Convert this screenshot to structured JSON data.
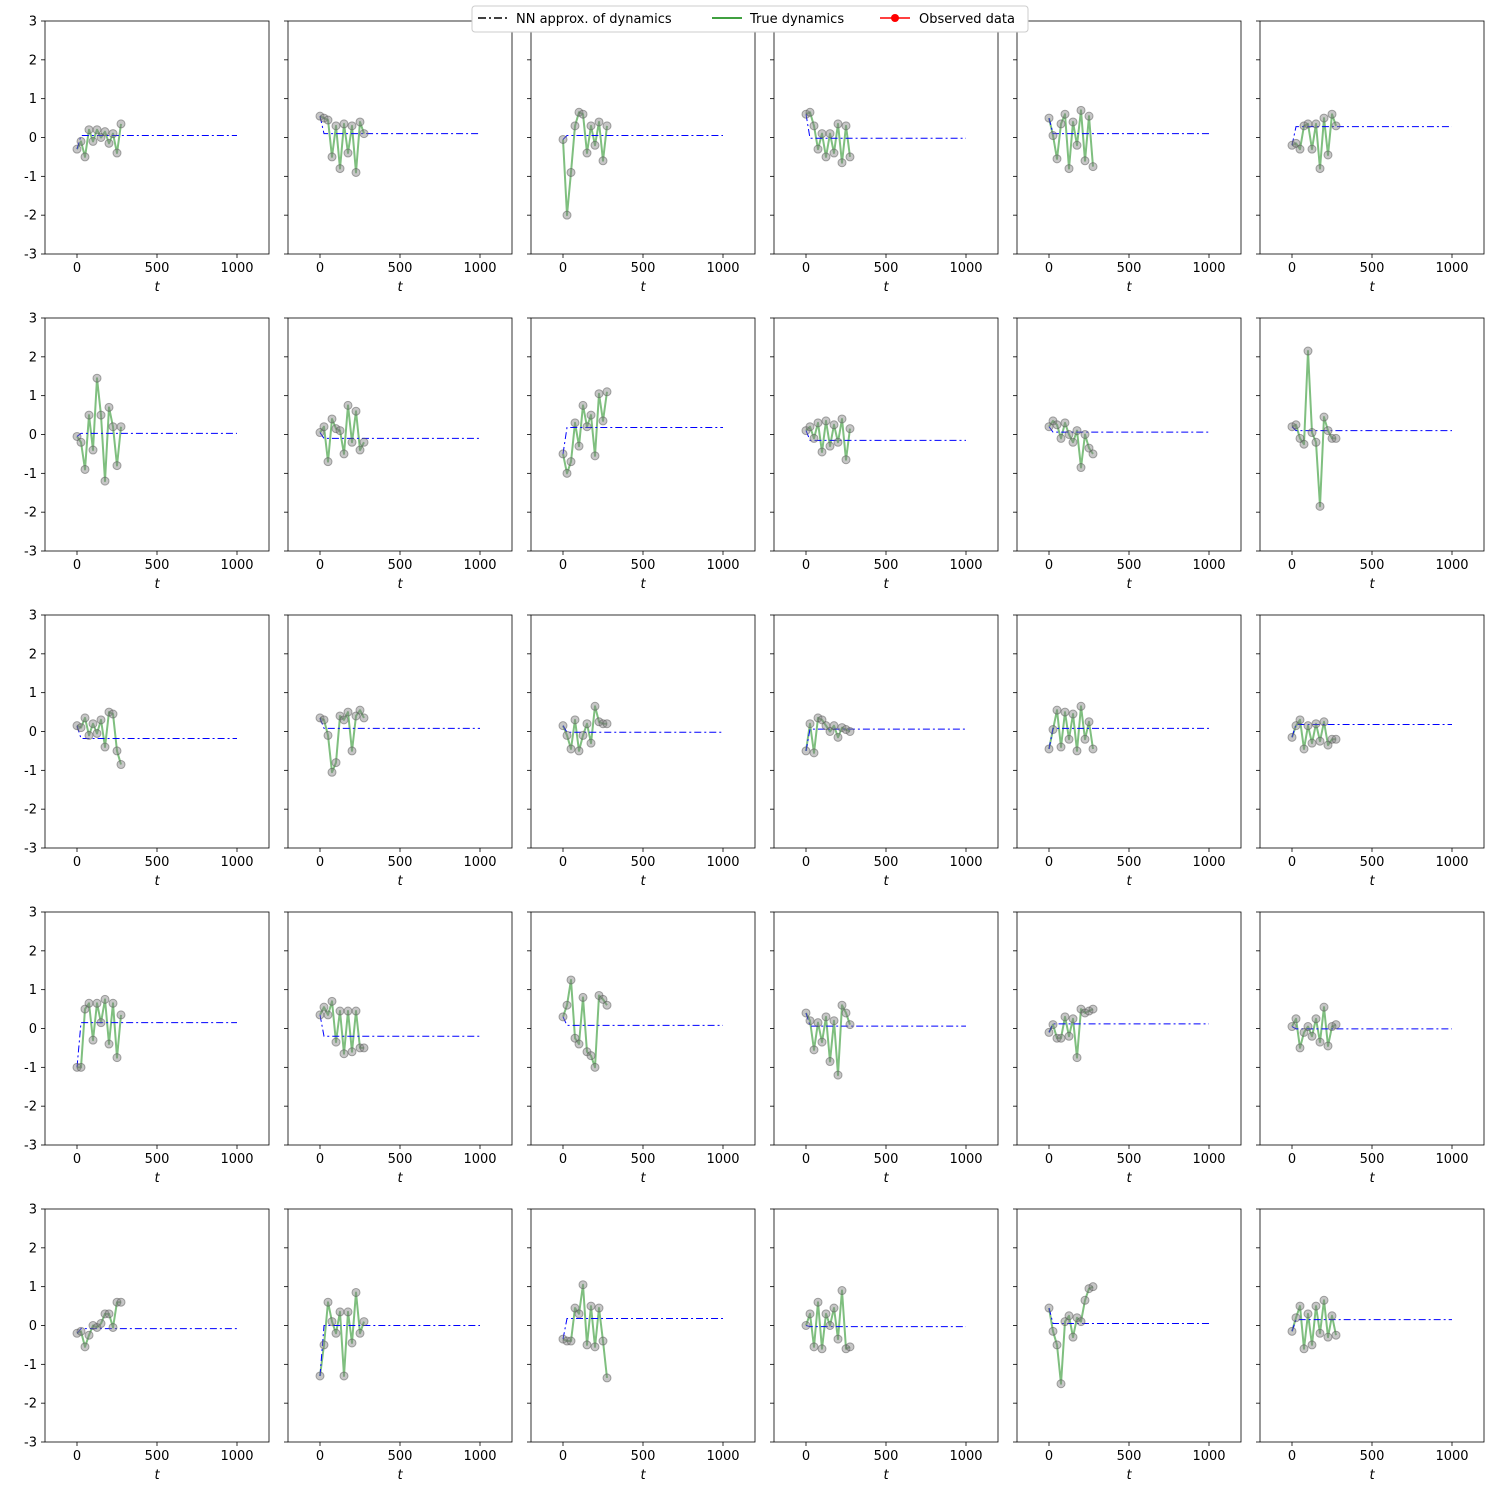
{
  "legend": {
    "items": [
      {
        "label": "NN approx. of dynamics",
        "color": "#000000",
        "style": "dashdot"
      },
      {
        "label": "True dynamics",
        "color": "#008000",
        "style": "solid"
      },
      {
        "label": "Observed data",
        "color": "#ff0000",
        "style": "line-marker"
      }
    ],
    "placement": "top-center"
  },
  "colors": {
    "nn_line": "#0000ff",
    "true_line": "#008000",
    "observed_marker": "#808080"
  },
  "chart_data": {
    "type": "line",
    "layout": "grid 5x6 small multiples",
    "xlim": [
      -200,
      1200
    ],
    "ylim": [
      -3,
      3
    ],
    "xticks": [
      0,
      500,
      1000
    ],
    "yticks": [
      -3,
      -2,
      -1,
      0,
      1,
      2,
      3
    ],
    "xlabel": "t",
    "ylabel": "",
    "grid": false,
    "observed_t": [
      0,
      25,
      50,
      75,
      100,
      125,
      150,
      175,
      200,
      225,
      250,
      275
    ],
    "nn_t": [
      0,
      25,
      1000
    ],
    "panels": [
      {
        "observed": [
          -0.3,
          -0.1,
          -0.5,
          0.2,
          -0.1,
          0.2,
          0.0,
          0.15,
          -0.15,
          0.1,
          -0.4,
          0.35
        ],
        "nn": [
          -0.3,
          0.05,
          0.05
        ]
      },
      {
        "observed": [
          0.55,
          0.5,
          0.45,
          -0.5,
          0.3,
          -0.8,
          0.35,
          -0.4,
          0.3,
          -0.9,
          0.4,
          0.1
        ],
        "nn": [
          0.55,
          0.1,
          0.1
        ]
      },
      {
        "observed": [
          -0.05,
          -2.0,
          -0.9,
          0.3,
          0.65,
          0.6,
          -0.4,
          0.3,
          -0.2,
          0.4,
          -0.6,
          0.3
        ],
        "nn": [
          -0.05,
          0.05,
          0.05
        ]
      },
      {
        "observed": [
          0.6,
          0.65,
          0.3,
          -0.3,
          0.1,
          -0.5,
          0.1,
          -0.4,
          0.35,
          -0.65,
          0.3,
          -0.5
        ],
        "nn": [
          0.6,
          -0.02,
          -0.02
        ]
      },
      {
        "observed": [
          0.5,
          0.05,
          -0.55,
          0.35,
          0.6,
          -0.8,
          0.4,
          -0.2,
          0.7,
          -0.6,
          0.55,
          -0.75
        ],
        "nn": [
          0.5,
          0.1,
          0.1
        ]
      },
      {
        "observed": [
          -0.2,
          -0.15,
          -0.3,
          0.3,
          0.35,
          -0.3,
          0.35,
          -0.8,
          0.5,
          -0.45,
          0.6,
          0.3
        ],
        "nn": [
          -0.2,
          0.28,
          0.28
        ]
      },
      {
        "observed": [
          -0.05,
          -0.2,
          -0.9,
          0.5,
          -0.4,
          1.45,
          0.5,
          -1.2,
          0.7,
          0.2,
          -0.8,
          0.2
        ],
        "nn": [
          -0.05,
          0.03,
          0.03
        ]
      },
      {
        "observed": [
          0.05,
          0.2,
          -0.7,
          0.4,
          0.15,
          0.1,
          -0.5,
          0.75,
          -0.2,
          0.6,
          -0.4,
          -0.2
        ],
        "nn": [
          0.05,
          -0.1,
          -0.1
        ]
      },
      {
        "observed": [
          -0.5,
          -1.0,
          -0.7,
          0.3,
          -0.3,
          0.75,
          0.2,
          0.5,
          -0.55,
          1.05,
          0.35,
          1.1
        ],
        "nn": [
          -0.5,
          0.18,
          0.18
        ]
      },
      {
        "observed": [
          0.1,
          0.2,
          -0.1,
          0.3,
          -0.45,
          0.35,
          -0.3,
          0.25,
          -0.2,
          0.4,
          -0.65,
          0.15
        ],
        "nn": [
          0.1,
          -0.15,
          -0.15
        ]
      },
      {
        "observed": [
          0.2,
          0.35,
          0.25,
          -0.1,
          0.3,
          0.0,
          -0.2,
          0.1,
          -0.85,
          0.0,
          -0.35,
          -0.5
        ],
        "nn": [
          0.2,
          0.06,
          0.06
        ]
      },
      {
        "observed": [
          0.2,
          0.25,
          -0.1,
          -0.25,
          2.15,
          0.05,
          -0.2,
          -1.85,
          0.45,
          0.1,
          -0.1,
          -0.1
        ],
        "nn": [
          0.2,
          0.1,
          0.1
        ]
      },
      {
        "observed": [
          0.15,
          0.1,
          0.35,
          -0.1,
          0.2,
          -0.05,
          0.3,
          -0.4,
          0.5,
          0.45,
          -0.5,
          -0.85
        ],
        "nn": [
          0.15,
          -0.18,
          -0.18
        ]
      },
      {
        "observed": [
          0.35,
          0.3,
          -0.1,
          -1.05,
          -0.8,
          0.4,
          0.3,
          0.5,
          -0.5,
          0.4,
          0.55,
          0.35
        ],
        "nn": [
          0.35,
          0.08,
          0.08
        ]
      },
      {
        "observed": [
          0.15,
          -0.1,
          -0.45,
          0.3,
          -0.5,
          -0.1,
          0.2,
          -0.3,
          0.65,
          0.25,
          0.2,
          0.2
        ],
        "nn": [
          0.15,
          -0.02,
          -0.02
        ]
      },
      {
        "observed": [
          -0.5,
          0.2,
          -0.55,
          0.35,
          0.3,
          0.15,
          0.0,
          0.15,
          -0.15,
          0.1,
          0.05,
          0.0
        ],
        "nn": [
          -0.5,
          0.06,
          0.06
        ]
      },
      {
        "observed": [
          -0.45,
          0.05,
          0.55,
          -0.4,
          0.5,
          -0.2,
          0.45,
          -0.5,
          0.65,
          -0.2,
          0.25,
          -0.45
        ],
        "nn": [
          -0.45,
          0.08,
          0.08
        ]
      },
      {
        "observed": [
          -0.15,
          0.15,
          0.3,
          -0.45,
          0.15,
          -0.3,
          0.2,
          -0.25,
          0.25,
          -0.35,
          -0.2,
          -0.2
        ],
        "nn": [
          -0.15,
          0.18,
          0.18
        ]
      },
      {
        "observed": [
          -1.0,
          -1.0,
          0.5,
          0.65,
          -0.3,
          0.65,
          0.15,
          0.75,
          -0.4,
          0.65,
          -0.75,
          0.35
        ],
        "nn": [
          -1.0,
          0.15,
          0.15
        ]
      },
      {
        "observed": [
          0.35,
          0.55,
          0.35,
          0.7,
          -0.35,
          0.45,
          -0.65,
          0.45,
          -0.6,
          0.45,
          -0.5,
          -0.5
        ],
        "nn": [
          0.35,
          -0.2,
          -0.2
        ]
      },
      {
        "observed": [
          0.3,
          0.6,
          1.25,
          -0.25,
          -0.4,
          0.8,
          -0.6,
          -0.7,
          -1.0,
          0.85,
          0.75,
          0.6
        ],
        "nn": [
          0.3,
          0.08,
          0.08
        ]
      },
      {
        "observed": [
          0.4,
          0.2,
          -0.55,
          0.15,
          -0.35,
          0.3,
          -0.85,
          0.2,
          -1.2,
          0.6,
          0.4,
          0.1
        ],
        "nn": [
          0.4,
          0.06,
          0.06
        ]
      },
      {
        "observed": [
          -0.1,
          0.1,
          -0.25,
          -0.25,
          0.3,
          -0.2,
          0.25,
          -0.75,
          0.5,
          0.4,
          0.45,
          0.5
        ],
        "nn": [
          -0.1,
          0.12,
          0.12
        ]
      },
      {
        "observed": [
          0.05,
          0.25,
          -0.5,
          -0.1,
          0.05,
          -0.2,
          0.25,
          -0.35,
          0.55,
          -0.45,
          0.05,
          0.1
        ],
        "nn": [
          0.05,
          -0.01,
          -0.01
        ]
      },
      {
        "observed": [
          -0.2,
          -0.15,
          -0.55,
          -0.25,
          0.0,
          -0.05,
          0.05,
          0.3,
          0.3,
          -0.05,
          0.6,
          0.6
        ],
        "nn": [
          -0.2,
          -0.08,
          -0.08
        ]
      },
      {
        "observed": [
          -1.3,
          -0.5,
          0.6,
          0.1,
          -0.2,
          0.35,
          -1.3,
          0.35,
          -0.45,
          0.85,
          -0.2,
          0.1
        ],
        "nn": [
          -1.3,
          0.0,
          0.0
        ]
      },
      {
        "observed": [
          -0.35,
          -0.4,
          -0.4,
          0.45,
          0.3,
          1.05,
          -0.5,
          0.5,
          -0.55,
          0.45,
          -0.4,
          -1.35
        ],
        "nn": [
          -0.35,
          0.18,
          0.18
        ]
      },
      {
        "observed": [
          0.0,
          0.3,
          -0.55,
          0.6,
          -0.6,
          0.3,
          0.0,
          0.45,
          -0.35,
          0.9,
          -0.6,
          -0.55
        ],
        "nn": [
          0.0,
          -0.03,
          -0.03
        ]
      },
      {
        "observed": [
          0.45,
          -0.15,
          -0.5,
          -1.5,
          0.1,
          0.25,
          -0.3,
          0.2,
          0.1,
          0.65,
          0.95,
          1.0
        ],
        "nn": [
          0.45,
          0.05,
          0.05
        ]
      },
      {
        "observed": [
          -0.15,
          0.2,
          0.5,
          -0.6,
          0.3,
          -0.5,
          0.5,
          -0.2,
          0.65,
          -0.3,
          0.25,
          -0.25
        ],
        "nn": [
          -0.15,
          0.15,
          0.15
        ]
      }
    ]
  }
}
